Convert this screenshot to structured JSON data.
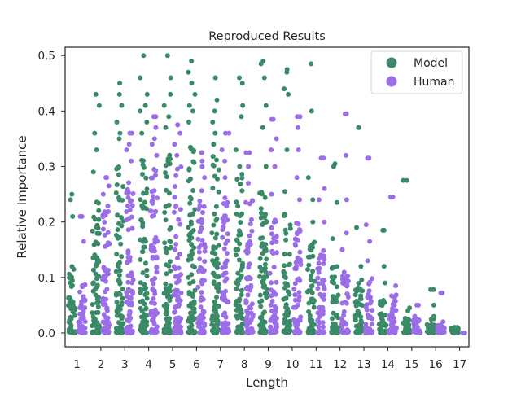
{
  "chart_data": {
    "type": "scatter",
    "title": "Reproduced Results",
    "xlabel": "Length",
    "ylabel": "Relative Importance",
    "categories": [
      "1",
      "2",
      "3",
      "4",
      "5",
      "6",
      "7",
      "8",
      "9",
      "10",
      "11",
      "12",
      "13",
      "14",
      "15",
      "16",
      "17"
    ],
    "ylim": [
      -0.025,
      0.515
    ],
    "yticks": [
      "0.0",
      "0.1",
      "0.2",
      "0.3",
      "0.4",
      "0.5"
    ],
    "grid": false,
    "legend_position": "top-right",
    "series": [
      {
        "name": "Model",
        "color": "#3a8a68",
        "max_values": [
          0.25,
          0.43,
          0.45,
          0.5,
          0.5,
          0.49,
          0.46,
          0.46,
          0.49,
          0.475,
          0.485,
          0.305,
          0.37,
          0.185,
          0.275,
          0.078,
          0.01
        ],
        "dense_upper": [
          0.12,
          0.26,
          0.3,
          0.32,
          0.33,
          0.34,
          0.32,
          0.29,
          0.27,
          0.22,
          0.17,
          0.12,
          0.11,
          0.06,
          0.04,
          0.03,
          0.01
        ],
        "outliers": [
          [
            0.21,
            0.24
          ],
          [
            0.41,
            0.36,
            0.33,
            0.29
          ],
          [
            0.43,
            0.41,
            0.38,
            0.36,
            0.35
          ],
          [
            0.46,
            0.43,
            0.41,
            0.4,
            0.38,
            0.36
          ],
          [
            0.46,
            0.43,
            0.41,
            0.39,
            0.37
          ],
          [
            0.47,
            0.45,
            0.43,
            0.41,
            0.4,
            0.38
          ],
          [
            0.42,
            0.4,
            0.38,
            0.36,
            0.34
          ],
          [
            0.45,
            0.41,
            0.39,
            0.33,
            0.3
          ],
          [
            0.485,
            0.46,
            0.41,
            0.37,
            0.3
          ],
          [
            0.47,
            0.44,
            0.43,
            0.33,
            0.255
          ],
          [
            0.4,
            0.28,
            0.24,
            0.2
          ],
          [
            0.3,
            0.235,
            0.17
          ],
          [
            0.37,
            0.19,
            0.12
          ],
          [
            0.185,
            0.12,
            0.09
          ],
          [
            0.275,
            0.045,
            0.02
          ],
          [
            0.078,
            0.05,
            0.015
          ],
          [
            0.01
          ]
        ]
      },
      {
        "name": "Human",
        "color": "#9b6ee8",
        "max_values": [
          0.21,
          0.28,
          0.36,
          0.39,
          0.375,
          0.325,
          0.36,
          0.325,
          0.385,
          0.39,
          0.315,
          0.395,
          0.315,
          0.245,
          0.05,
          0.072,
          0.0
        ],
        "dense_upper": [
          0.09,
          0.24,
          0.28,
          0.3,
          0.3,
          0.26,
          0.25,
          0.24,
          0.21,
          0.2,
          0.15,
          0.12,
          0.1,
          0.07,
          0.03,
          0.02,
          0.0
        ],
        "outliers": [
          [
            0.21,
            0.165
          ],
          [
            0.28,
            0.265,
            0.25
          ],
          [
            0.36,
            0.34,
            0.33,
            0.31
          ],
          [
            0.39,
            0.37,
            0.35,
            0.34,
            0.32
          ],
          [
            0.375,
            0.36,
            0.34,
            0.32
          ],
          [
            0.325,
            0.31,
            0.3,
            0.28
          ],
          [
            0.36,
            0.33,
            0.31,
            0.28
          ],
          [
            0.325,
            0.3,
            0.27
          ],
          [
            0.385,
            0.35,
            0.33,
            0.3,
            0.25
          ],
          [
            0.39,
            0.37,
            0.33,
            0.28,
            0.24
          ],
          [
            0.315,
            0.26,
            0.24,
            0.2
          ],
          [
            0.395,
            0.32,
            0.24,
            0.18,
            0.15
          ],
          [
            0.315,
            0.195,
            0.165,
            0.13
          ],
          [
            0.245,
            0.085,
            0.05
          ],
          [
            0.05,
            0.03,
            0.01
          ],
          [
            0.072,
            0.02
          ],
          [
            0.0
          ]
        ]
      }
    ]
  }
}
